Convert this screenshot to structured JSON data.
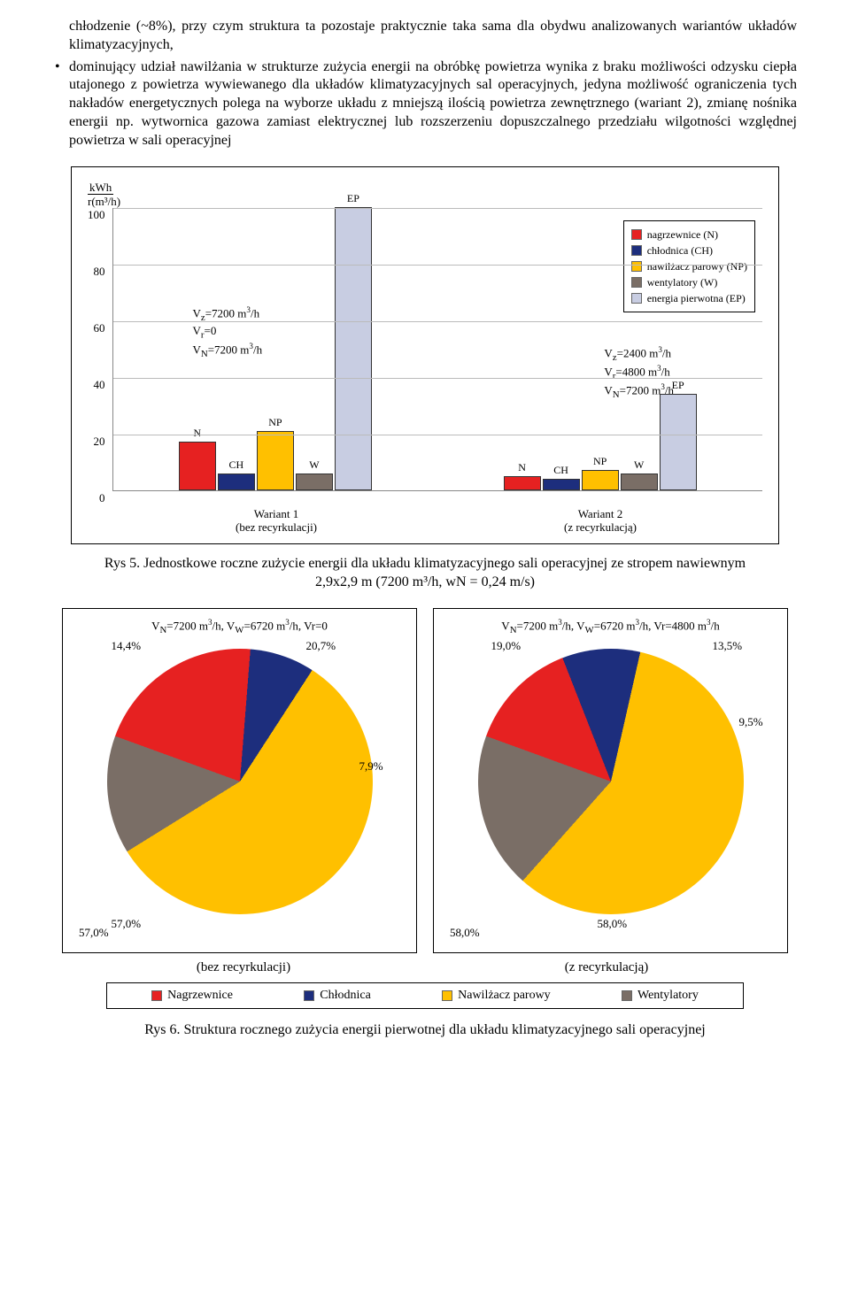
{
  "text": {
    "para1": "chłodzenie (~8%), przy czym struktura ta pozostaje praktycznie taka sama dla obydwu analizowanych wariantów układów klimatyzacyjnych,",
    "para2": "dominujący udział nawilżania w strukturze zużycia energii na obróbkę powietrza wynika z braku możliwości odzysku ciepła utajonego z powietrza wywiewanego dla układów klimatyzacyjnych sal operacyjnych, jedyna możliwość ograniczenia tych nakładów energetycznych polega na wyborze układu z mniejszą ilością powietrza zewnętrznego (wariant 2), zmianę nośnika energii np. wytwornica gazowa zamiast elektrycznej lub rozszerzeniu dopuszczalnego przedziału wilgotności względnej powietrza w sali operacyjnej"
  },
  "barChart": {
    "ylabel_top": "kWh",
    "ylabel_bottom": "r(m³/h)",
    "ymax": 100,
    "ytick_step": 20,
    "yticks": [
      "100",
      "80",
      "60",
      "40",
      "20",
      "0"
    ],
    "seriesLabels": [
      "N",
      "CH",
      "NP",
      "W",
      "EP"
    ],
    "colors": {
      "N": "#e62121",
      "CH": "#1d2e7d",
      "NP": "#ffc000",
      "W": "#7a6e66",
      "EP": "#c8cde2"
    },
    "params1": [
      "Vz=7200 m³/h",
      "Vr=0",
      "VN=7200 m³/h"
    ],
    "params2": [
      "Vz=2400 m³/h",
      "Vr=4800 m³/h",
      "VN=7200 m³/h"
    ],
    "groups": [
      {
        "name": "Wariant 1",
        "subtitle": "(bez recyrkulacji)",
        "values": {
          "N": 17,
          "CH": 6,
          "NP": 21,
          "W": 6,
          "EP": 104
        }
      },
      {
        "name": "Wariant 2",
        "subtitle": "(z recyrkulacją)",
        "values": {
          "N": 5,
          "CH": 4,
          "NP": 7,
          "W": 6,
          "EP": 34
        }
      }
    ],
    "legend": [
      {
        "color": "#e62121",
        "label": "nagrzewnice (N)"
      },
      {
        "color": "#1d2e7d",
        "label": "chłodnica (CH)"
      },
      {
        "color": "#ffc000",
        "label": "nawilżacz parowy (NP)"
      },
      {
        "color": "#7a6e66",
        "label": "wentylatory (W)"
      },
      {
        "color": "#c8cde2",
        "label": "energia pierwotna (EP)"
      }
    ]
  },
  "caption1": "Rys 5. Jednostkowe roczne zużycie energii dla układu klimatyzacyjnego sali operacyjnej ze stropem nawiewnym 2,9x2,9 m (7200 m³/h, wN = 0,24 m/s)",
  "pies": [
    {
      "title": "VN=7200 m³/h, VW=6720 m³/h, Vr=0",
      "slices": [
        {
          "value": 20.7,
          "color": "#e62121",
          "label": "20,7%"
        },
        {
          "value": 7.9,
          "color": "#1d2e7d",
          "label": "7,9%"
        },
        {
          "value": 57.0,
          "color": "#ffc000",
          "label": "57,0%"
        },
        {
          "value": 14.4,
          "color": "#7a6e66",
          "label": "14,4%"
        }
      ],
      "sublabel": "(bez recyrkulacji)"
    },
    {
      "title": "VN=7200 m³/h, VW=6720 m³/h, Vr=4800 m³/h",
      "slices": [
        {
          "value": 13.5,
          "color": "#e62121",
          "label": "13,5%"
        },
        {
          "value": 9.5,
          "color": "#1d2e7d",
          "label": "9,5%"
        },
        {
          "value": 58.0,
          "color": "#ffc000",
          "label": "58,0%"
        },
        {
          "value": 19.0,
          "color": "#7a6e66",
          "label": "19,0%"
        }
      ],
      "sublabel": "(z recyrkulacją)"
    }
  ],
  "legendRow": [
    {
      "color": "#e62121",
      "label": "Nagrzewnice"
    },
    {
      "color": "#1d2e7d",
      "label": "Chłodnica"
    },
    {
      "color": "#ffc000",
      "label": "Nawilżacz parowy"
    },
    {
      "color": "#7a6e66",
      "label": "Wentylatory"
    }
  ],
  "caption2": "Rys 6. Struktura rocznego zużycia energii pierwotnej dla układu klimatyzacyjnego sali operacyjnej",
  "style": {
    "chartHeightPx": 320
  }
}
